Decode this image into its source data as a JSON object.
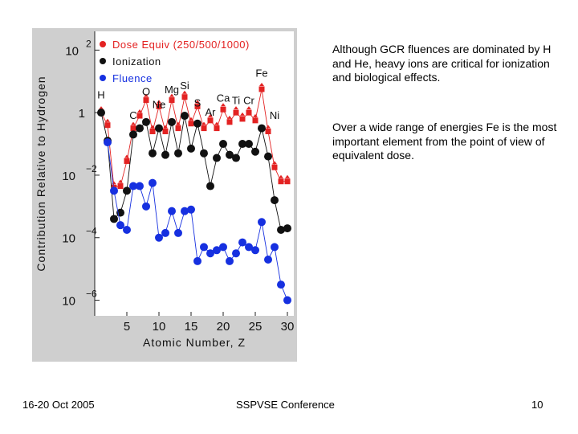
{
  "notes": [
    "Although GCR fluences are dominated by H and He, heavy ions are critical for ionization and biological effects.",
    "Over a wide range of energies Fe is the most important element from the point of view of equivalent dose."
  ],
  "footer": {
    "date": "16-20 Oct 2005",
    "conference": "SSPVSE Conference",
    "page": "10"
  },
  "colors": {
    "dose": "#e32222",
    "ionization": "#111111",
    "fluence": "#1630e0",
    "plot_background": "#cfcfcf"
  },
  "chart_data": {
    "type": "line",
    "title": "",
    "xlabel": "Atomic Number, Z",
    "ylabel": "Contribution Relative to Hydrogen",
    "xlim": [
      0,
      31
    ],
    "ylim_log10": [
      -6.5,
      2.6
    ],
    "scale_y": "log",
    "x_ticks": [
      5,
      10,
      15,
      20,
      25,
      30
    ],
    "y_ticks": [
      {
        "exp": 2,
        "label": "10",
        "sup": "2"
      },
      {
        "exp": 0,
        "label": "1",
        "sup": ""
      },
      {
        "exp": -2,
        "label": "10",
        "sup": "−2"
      },
      {
        "exp": -4,
        "label": "10",
        "sup": "−4"
      },
      {
        "exp": -6,
        "label": "10",
        "sup": "−6"
      }
    ],
    "legend": {
      "position": "top-left",
      "entries": [
        {
          "label": "Dose Equiv (250/500/1000)",
          "color": "#e32222"
        },
        {
          "label": "Ionization",
          "color": "#111111"
        },
        {
          "label": "Fluence",
          "color": "#1630e0"
        }
      ]
    },
    "element_labels": [
      {
        "text": "H",
        "z": 1,
        "log": 0.45
      },
      {
        "text": "C",
        "z": 6,
        "log": -0.2
      },
      {
        "text": "O",
        "z": 8,
        "log": 0.55
      },
      {
        "text": "Ne",
        "z": 10,
        "log": 0.15
      },
      {
        "text": "Mg",
        "z": 12,
        "log": 0.62
      },
      {
        "text": "Si",
        "z": 14,
        "log": 0.75
      },
      {
        "text": "S",
        "z": 16,
        "log": 0.2
      },
      {
        "text": "Ar",
        "z": 18,
        "log": -0.1
      },
      {
        "text": "Ca",
        "z": 20,
        "log": 0.35
      },
      {
        "text": "Ti",
        "z": 22,
        "log": 0.28
      },
      {
        "text": "Cr",
        "z": 24,
        "log": 0.28
      },
      {
        "text": "Fe",
        "z": 26,
        "log": 1.15
      },
      {
        "text": "Ni",
        "z": 28,
        "log": -0.2
      }
    ],
    "x": [
      1,
      2,
      3,
      4,
      5,
      6,
      7,
      8,
      9,
      10,
      11,
      12,
      13,
      14,
      15,
      16,
      17,
      18,
      19,
      20,
      21,
      22,
      23,
      24,
      25,
      26,
      27,
      28,
      29,
      30
    ],
    "series": [
      {
        "name": "Dose Equiv (250/500/1000)",
        "color": "#e32222",
        "marker": "triangle",
        "log10_values": [
          0.0,
          -0.4,
          -2.4,
          -2.35,
          -1.55,
          -0.5,
          -0.1,
          0.4,
          -0.6,
          0.2,
          -0.6,
          0.4,
          -0.5,
          0.5,
          -0.35,
          0.2,
          -0.5,
          -0.25,
          -0.5,
          0.1,
          -0.3,
          0.0,
          -0.2,
          0.0,
          -0.25,
          0.75,
          -0.6,
          -1.75,
          -2.2,
          -2.2
        ]
      },
      {
        "name": "Ionization",
        "color": "#111111",
        "marker": "circle",
        "log10_values": [
          0.0,
          -0.9,
          -3.4,
          -3.2,
          -2.5,
          -0.7,
          -0.5,
          -0.3,
          -1.3,
          -0.5,
          -1.35,
          -0.3,
          -1.3,
          -0.1,
          -1.15,
          -0.35,
          -1.3,
          -2.35,
          -1.45,
          -1.0,
          -1.35,
          -1.45,
          -1.0,
          -1.0,
          -1.25,
          -0.5,
          -1.4,
          -2.8,
          -3.75,
          -3.7
        ]
      },
      {
        "name": "Fluence",
        "color": "#1630e0",
        "marker": "circle",
        "log10_values": [
          null,
          -0.95,
          -2.5,
          -3.6,
          -3.75,
          -2.35,
          -2.35,
          -3.0,
          -2.25,
          -4.0,
          -3.85,
          -3.15,
          -3.85,
          -3.15,
          -3.1,
          -4.75,
          -4.3,
          -4.5,
          -4.4,
          -4.3,
          -4.75,
          -4.5,
          -4.15,
          -4.3,
          -4.4,
          -3.5,
          -4.7,
          -4.3,
          -5.5,
          -6.0
        ]
      }
    ]
  }
}
